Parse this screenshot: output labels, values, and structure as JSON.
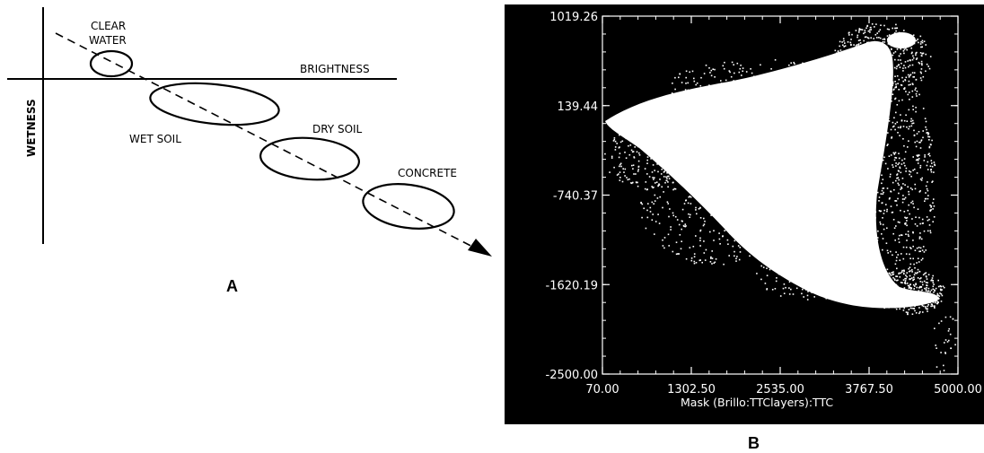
{
  "panel_a": {
    "letter": "A",
    "axes": {
      "x_label": "BRIGHTNESS",
      "y_label": "WETNESS"
    },
    "classes": [
      {
        "id": "clear-water",
        "label_line1": "CLEAR",
        "label_line2": "WATER"
      },
      {
        "id": "wet-soil",
        "label": "WET SOIL"
      },
      {
        "id": "dry-soil",
        "label": "DRY SOIL"
      },
      {
        "id": "concrete",
        "label": "CONCRETE"
      }
    ]
  },
  "panel_b": {
    "letter": "B",
    "xlabel": "Mask (Brillo:TTClayers):TTC",
    "x_ticks": [
      "70.00",
      "1302.50",
      "2535.00",
      "3767.50",
      "5000.00"
    ],
    "y_ticks": [
      "1019.26",
      "139.44",
      "-740.37",
      "-1620.19",
      "-2500.00"
    ],
    "xlim": [
      70,
      5000
    ],
    "ylim": [
      -2500,
      1019.26
    ],
    "colors": {
      "background": "#000000",
      "points": "#ffffff"
    }
  }
}
